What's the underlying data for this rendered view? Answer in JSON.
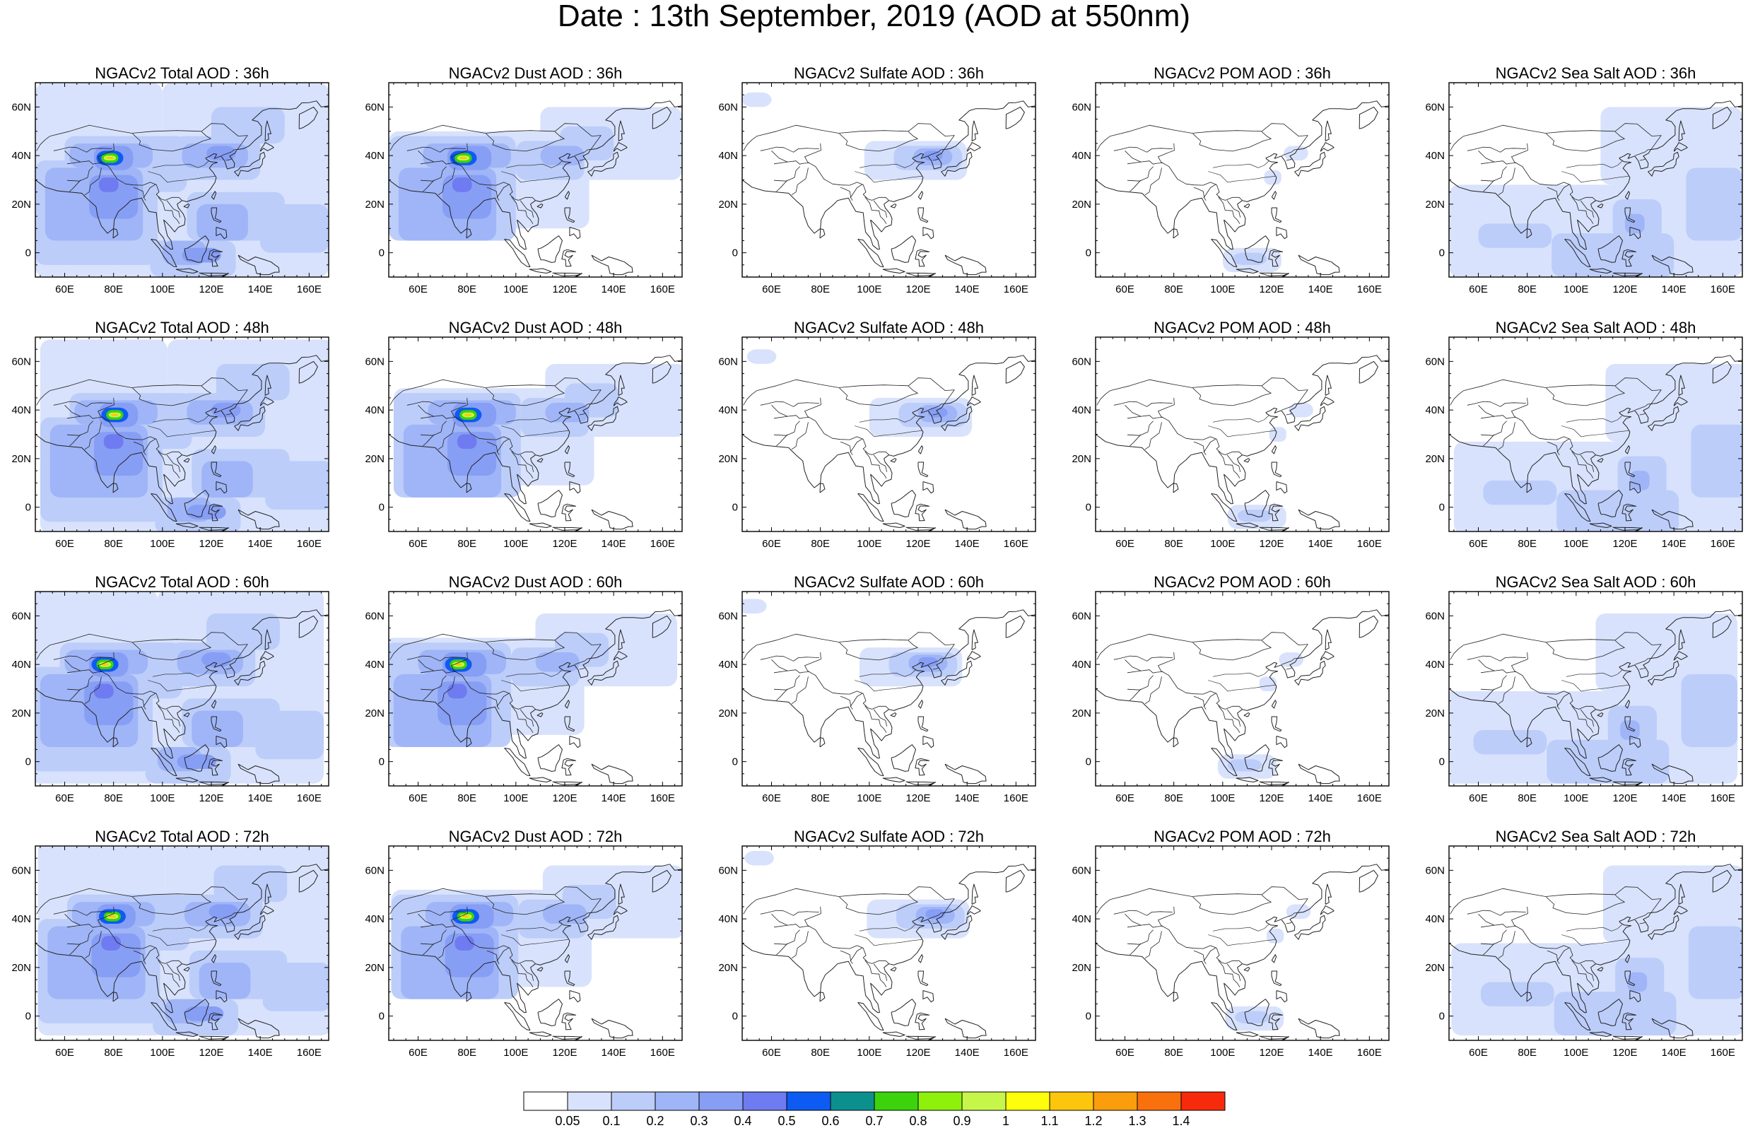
{
  "figure": {
    "title": "Date : 13th September, 2019 (AOD at 550nm)"
  },
  "panels": [
    [
      "NGACv2 Total AOD : 36h",
      "NGACv2 Dust AOD : 36h",
      "NGACv2 Sulfate AOD : 36h",
      "NGACv2 POM AOD : 36h",
      "NGACv2 Sea Salt AOD : 36h"
    ],
    [
      "NGACv2 Total AOD : 48h",
      "NGACv2 Dust AOD : 48h",
      "NGACv2 Sulfate AOD : 48h",
      "NGACv2 POM AOD : 48h",
      "NGACv2 Sea Salt AOD : 48h"
    ],
    [
      "NGACv2 Total AOD : 60h",
      "NGACv2 Dust AOD : 60h",
      "NGACv2 Sulfate AOD : 60h",
      "NGACv2 POM AOD : 60h",
      "NGACv2 Sea Salt AOD : 60h"
    ],
    [
      "NGACv2 Total AOD : 72h",
      "NGACv2 Dust AOD : 72h",
      "NGACv2 Sulfate AOD : 72h",
      "NGACv2 POM AOD : 72h",
      "NGACv2 Sea Salt  AOD : 72h"
    ]
  ],
  "axes": {
    "lon_range": [
      48,
      168
    ],
    "lat_range": [
      -10,
      70
    ],
    "x_ticks": [
      "60E",
      "80E",
      "100E",
      "120E",
      "140E",
      "160E"
    ],
    "x_tick_values": [
      60,
      80,
      100,
      120,
      140,
      160
    ],
    "y_ticks": [
      "60N",
      "40N",
      "20N",
      "0"
    ],
    "y_tick_values": [
      60,
      40,
      20,
      0
    ]
  },
  "colorbar": {
    "labels": [
      "0.05",
      "0.1",
      "0.2",
      "0.3",
      "0.4",
      "0.5",
      "0.6",
      "0.7",
      "0.8",
      "0.9",
      "1",
      "1.1",
      "1.2",
      "1.3",
      "1.4"
    ],
    "colors": [
      "#ffffff",
      "#d8e2fc",
      "#bccdfa",
      "#9fb5f7",
      "#879ef5",
      "#6f7bf0",
      "#0d5bf2",
      "#0c908e",
      "#3cd30c",
      "#8df10c",
      "#c7f64b",
      "#fefe0c",
      "#fcc60c",
      "#fb9d0c",
      "#f9710c",
      "#f82a0c"
    ]
  },
  "aerosol_types": [
    "Total",
    "Dust",
    "Sulfate",
    "POM",
    "Sea Salt"
  ],
  "lead_times": [
    "36h",
    "48h",
    "60h",
    "72h"
  ]
}
